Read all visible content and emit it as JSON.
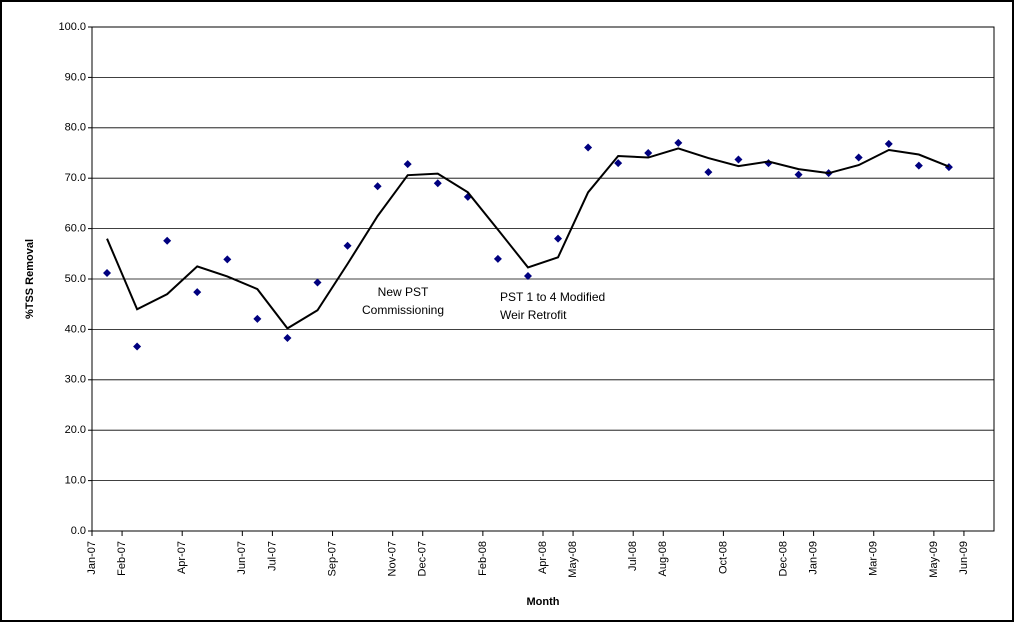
{
  "chart_data": {
    "type": "line",
    "y_label": "%TSS Removal",
    "x_label": "Month",
    "x": [
      "2007-01",
      "2007-02",
      "2007-03",
      "2007-04",
      "2007-05",
      "2007-06",
      "2007-07",
      "2007-08",
      "2007-09",
      "2007-10",
      "2007-11",
      "2007-12",
      "2008-01",
      "2008-02",
      "2008-03",
      "2008-04",
      "2008-05",
      "2008-06",
      "2008-07",
      "2008-08",
      "2008-09",
      "2008-10",
      "2008-11",
      "2008-12",
      "2009-01",
      "2009-02",
      "2009-03",
      "2009-04",
      "2009-05"
    ],
    "series": [
      {
        "style": "markers",
        "color": "#00007f",
        "values": [
          51.2,
          36.6,
          57.6,
          47.4,
          53.9,
          42.1,
          38.3,
          49.3,
          56.6,
          68.4,
          72.8,
          69.0,
          66.3,
          54.0,
          50.6,
          58.0,
          76.1,
          73.0,
          75.0,
          77.0,
          71.2,
          73.7,
          73.0,
          70.7,
          71.0,
          74.1,
          76.8,
          72.5,
          72.2
        ]
      },
      {
        "style": "line",
        "color": "#000000",
        "values": [
          58.0,
          44.0,
          47.0,
          52.5,
          50.5,
          48.0,
          40.2,
          43.8,
          53.0,
          62.5,
          70.6,
          70.9,
          67.2,
          59.8,
          52.3,
          54.3,
          67.2,
          74.4,
          74.1,
          75.9,
          74.0,
          72.4,
          73.3,
          71.8,
          71.0,
          72.6,
          75.6,
          74.7,
          72.3
        ]
      }
    ],
    "xlim": [
      "2007-01",
      "2009-07"
    ],
    "xticks": [
      {
        "value": "2007-01",
        "label": "Jan-07"
      },
      {
        "value": "2007-02",
        "label": "Feb-07"
      },
      {
        "value": "2007-04",
        "label": "Apr-07"
      },
      {
        "value": "2007-06",
        "label": "Jun-07"
      },
      {
        "value": "2007-07",
        "label": "Jul-07"
      },
      {
        "value": "2007-09",
        "label": "Sep-07"
      },
      {
        "value": "2007-11",
        "label": "Nov-07"
      },
      {
        "value": "2007-12",
        "label": "Dec-07"
      },
      {
        "value": "2008-02",
        "label": "Feb-08"
      },
      {
        "value": "2008-04",
        "label": "Apr-08"
      },
      {
        "value": "2008-05",
        "label": "May-08"
      },
      {
        "value": "2008-07",
        "label": "Jul-08"
      },
      {
        "value": "2008-08",
        "label": "Aug-08"
      },
      {
        "value": "2008-10",
        "label": "Oct-08"
      },
      {
        "value": "2008-12",
        "label": "Dec-08"
      },
      {
        "value": "2009-01",
        "label": "Jan-09"
      },
      {
        "value": "2009-03",
        "label": "Mar-09"
      },
      {
        "value": "2009-05",
        "label": "May-09"
      },
      {
        "value": "2009-06",
        "label": "Jun-09"
      }
    ],
    "ylim": [
      0,
      100
    ],
    "yticks": [
      {
        "value": 0,
        "label": "0.0"
      },
      {
        "value": 10,
        "label": "10.0"
      },
      {
        "value": 20,
        "label": "20.0"
      },
      {
        "value": 30,
        "label": "30.0"
      },
      {
        "value": 40,
        "label": "40.0"
      },
      {
        "value": 50,
        "label": "50.0"
      },
      {
        "value": 60,
        "label": "60.0"
      },
      {
        "value": 70,
        "label": "70.0"
      },
      {
        "value": 80,
        "label": "80.0"
      },
      {
        "value": 90,
        "label": "90.0"
      },
      {
        "value": 100,
        "label": "100.0"
      }
    ],
    "grid": true,
    "annotations": [
      {
        "lines": [
          "New PST",
          "Commissioning"
        ]
      },
      {
        "lines": [
          "PST 1 to 4 Modified",
          "Weir Retrofit"
        ]
      }
    ]
  }
}
